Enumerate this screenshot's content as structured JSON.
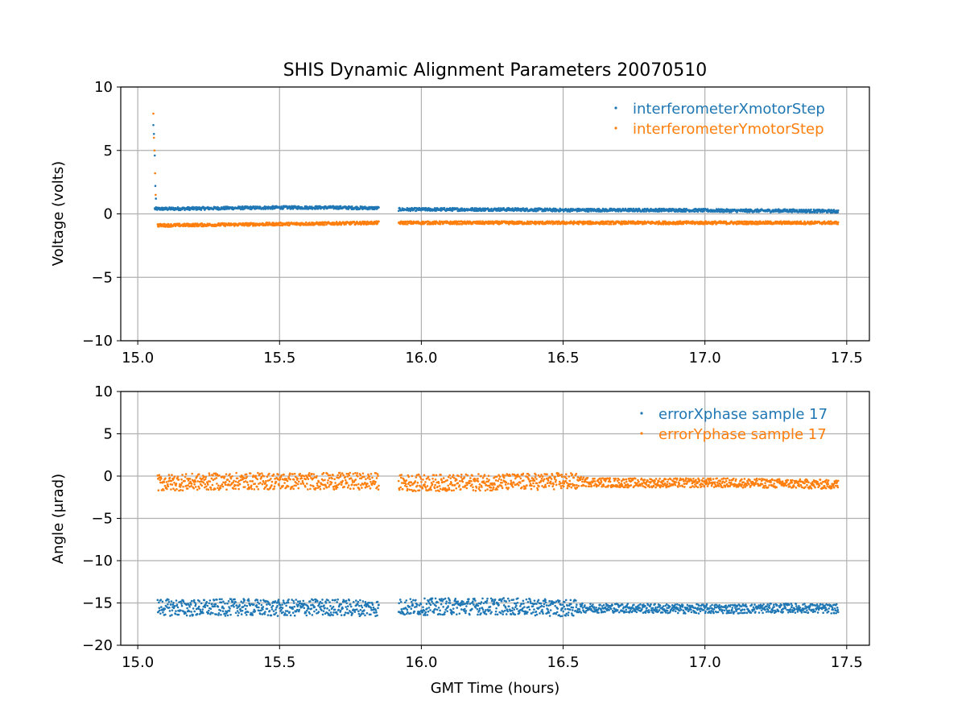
{
  "chart_data": [
    {
      "type": "scatter",
      "title": "SHIS Dynamic Alignment Parameters 20070510",
      "xlabel": "",
      "ylabel": "Voltage (volts)",
      "xlim": [
        14.94,
        17.58
      ],
      "ylim": [
        -10,
        10
      ],
      "xticks": [
        "15.0",
        "15.5",
        "16.0",
        "16.5",
        "17.0",
        "17.5"
      ],
      "yticks": [
        "10",
        "5",
        "0",
        "−5",
        "−10"
      ],
      "grid": true,
      "legend_position": "top-right",
      "series": [
        {
          "name": "interferometerXmotorStep",
          "color": "#1f77b4",
          "x": [
            15.06,
            15.1,
            15.3,
            15.5,
            15.7,
            15.85,
            15.92,
            16.1,
            16.3,
            16.5,
            16.7,
            16.9,
            17.1,
            17.3,
            17.47
          ],
          "y": [
            0.4,
            0.4,
            0.45,
            0.5,
            0.5,
            0.45,
            0.35,
            0.35,
            0.35,
            0.3,
            0.3,
            0.3,
            0.25,
            0.25,
            0.2
          ],
          "startup_spike": {
            "x": [
              15.055,
              15.057,
              15.06,
              15.062,
              15.064
            ],
            "y": [
              7.0,
              6.3,
              4.6,
              2.2,
              1.2
            ]
          }
        },
        {
          "name": "interferometerYmotorStep",
          "color": "#ff7f0e",
          "x": [
            15.07,
            15.1,
            15.3,
            15.5,
            15.7,
            15.85,
            15.92,
            16.1,
            16.3,
            16.5,
            16.7,
            16.9,
            17.1,
            17.3,
            17.47
          ],
          "y": [
            -0.9,
            -0.9,
            -0.85,
            -0.8,
            -0.75,
            -0.7,
            -0.7,
            -0.7,
            -0.7,
            -0.7,
            -0.7,
            -0.7,
            -0.7,
            -0.7,
            -0.7
          ],
          "startup_spike": {
            "x": [
              15.055,
              15.057,
              15.059,
              15.061,
              15.063
            ],
            "y": [
              7.9,
              6.0,
              5.0,
              3.2,
              1.5
            ]
          }
        }
      ]
    },
    {
      "type": "scatter",
      "title": "",
      "xlabel": "GMT Time (hours)",
      "ylabel": "Angle (μrad)",
      "xlim": [
        14.94,
        17.58
      ],
      "ylim": [
        -20,
        10
      ],
      "xticks": [
        "15.0",
        "15.5",
        "16.0",
        "16.5",
        "17.0",
        "17.5"
      ],
      "yticks": [
        "10",
        "5",
        "0",
        "−5",
        "−10",
        "−15",
        "−20"
      ],
      "grid": true,
      "legend_position": "top-right",
      "series": [
        {
          "name": "errorXphase sample 17",
          "color": "#1f77b4",
          "x": [
            15.07,
            15.2,
            15.35,
            15.5,
            15.65,
            15.85,
            15.92,
            16.1,
            16.3,
            16.5,
            16.7,
            16.9,
            17.1,
            17.3,
            17.47
          ],
          "y": [
            -15.5,
            -15.6,
            -15.5,
            -15.6,
            -15.5,
            -15.6,
            -15.5,
            -15.4,
            -15.4,
            -15.6,
            -15.6,
            -15.7,
            -15.7,
            -15.6,
            -15.7
          ]
        },
        {
          "name": "errorYphase sample 17",
          "color": "#ff7f0e",
          "x": [
            15.07,
            15.2,
            15.35,
            15.5,
            15.65,
            15.85,
            15.92,
            16.1,
            16.3,
            16.5,
            16.7,
            16.9,
            17.1,
            17.3,
            17.47
          ],
          "y": [
            -0.8,
            -0.7,
            -0.6,
            -0.6,
            -0.6,
            -0.6,
            -0.8,
            -0.8,
            -0.7,
            -0.6,
            -0.8,
            -0.8,
            -0.8,
            -0.9,
            -1.0
          ]
        }
      ]
    }
  ]
}
